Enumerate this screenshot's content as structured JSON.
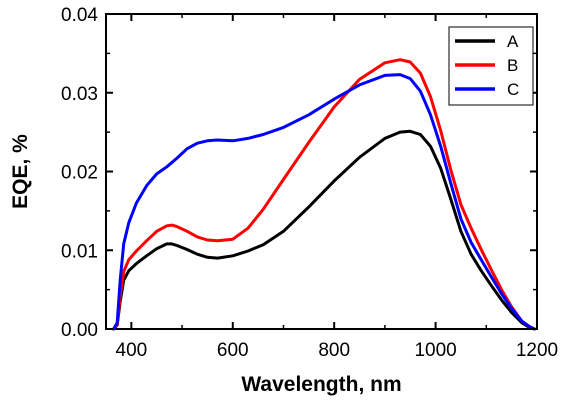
{
  "chart_data": {
    "type": "line",
    "xlabel": "Wavelength, nm",
    "ylabel": "EQE, %",
    "xlim": [
      350,
      1200
    ],
    "ylim": [
      0,
      0.04
    ],
    "x_ticks": [
      400,
      600,
      800,
      1000,
      1200
    ],
    "x_tick_labels": [
      "400",
      "600",
      "800",
      "1000",
      "1200"
    ],
    "y_ticks": [
      0,
      0.01,
      0.02,
      0.03,
      0.04
    ],
    "y_tick_labels": [
      "0.00",
      "0.01",
      "0.02",
      "0.03",
      "0.04"
    ],
    "grid": false,
    "legend_position": "top-right",
    "series": [
      {
        "name": "A",
        "color": "#000000",
        "x": [
          365,
          372,
          378,
          385,
          395,
          410,
          430,
          450,
          470,
          480,
          490,
          510,
          530,
          550,
          570,
          600,
          630,
          660,
          700,
          750,
          800,
          850,
          900,
          930,
          950,
          970,
          990,
          1010,
          1030,
          1050,
          1070,
          1090,
          1110,
          1130,
          1150,
          1170,
          1185,
          1195
        ],
        "y": [
          0,
          0.0005,
          0.0035,
          0.0062,
          0.0074,
          0.0083,
          0.0093,
          0.0102,
          0.0108,
          0.0108,
          0.0106,
          0.0101,
          0.0095,
          0.0091,
          0.009,
          0.0093,
          0.0099,
          0.0107,
          0.0124,
          0.0155,
          0.0188,
          0.0218,
          0.0242,
          0.025,
          0.0251,
          0.0247,
          0.0232,
          0.0204,
          0.0165,
          0.0124,
          0.0095,
          0.0074,
          0.0055,
          0.0037,
          0.0021,
          0.0008,
          0.0002,
          0
        ]
      },
      {
        "name": "B",
        "color": "#ff0000",
        "x": [
          365,
          372,
          378,
          385,
          395,
          410,
          430,
          450,
          470,
          480,
          490,
          510,
          530,
          550,
          570,
          600,
          630,
          660,
          700,
          750,
          800,
          850,
          900,
          930,
          950,
          970,
          990,
          1010,
          1030,
          1050,
          1070,
          1090,
          1110,
          1130,
          1150,
          1170,
          1185,
          1195
        ],
        "y": [
          0,
          0.0006,
          0.0042,
          0.0073,
          0.0088,
          0.0099,
          0.0112,
          0.0124,
          0.0131,
          0.0132,
          0.013,
          0.0124,
          0.0117,
          0.0113,
          0.0112,
          0.0114,
          0.0128,
          0.0152,
          0.019,
          0.0237,
          0.0282,
          0.0317,
          0.0338,
          0.0342,
          0.0339,
          0.0325,
          0.0295,
          0.0252,
          0.0202,
          0.0158,
          0.0128,
          0.0101,
          0.0075,
          0.005,
          0.0028,
          0.001,
          0.0003,
          0
        ]
      },
      {
        "name": "C",
        "color": "#0000ff",
        "x": [
          365,
          372,
          378,
          385,
          395,
          410,
          430,
          450,
          470,
          490,
          510,
          530,
          550,
          570,
          600,
          630,
          660,
          700,
          750,
          800,
          850,
          900,
          930,
          950,
          970,
          990,
          1010,
          1030,
          1050,
          1070,
          1090,
          1110,
          1130,
          1150,
          1170,
          1185,
          1195
        ],
        "y": [
          0,
          0.0008,
          0.0062,
          0.0108,
          0.0135,
          0.016,
          0.0182,
          0.0197,
          0.0206,
          0.0217,
          0.0229,
          0.0236,
          0.0239,
          0.024,
          0.0239,
          0.0242,
          0.0247,
          0.0256,
          0.0272,
          0.0292,
          0.031,
          0.0322,
          0.0323,
          0.0318,
          0.0302,
          0.0272,
          0.0232,
          0.0185,
          0.014,
          0.011,
          0.0088,
          0.0066,
          0.0045,
          0.0026,
          0.001,
          0.0003,
          0
        ]
      }
    ]
  }
}
